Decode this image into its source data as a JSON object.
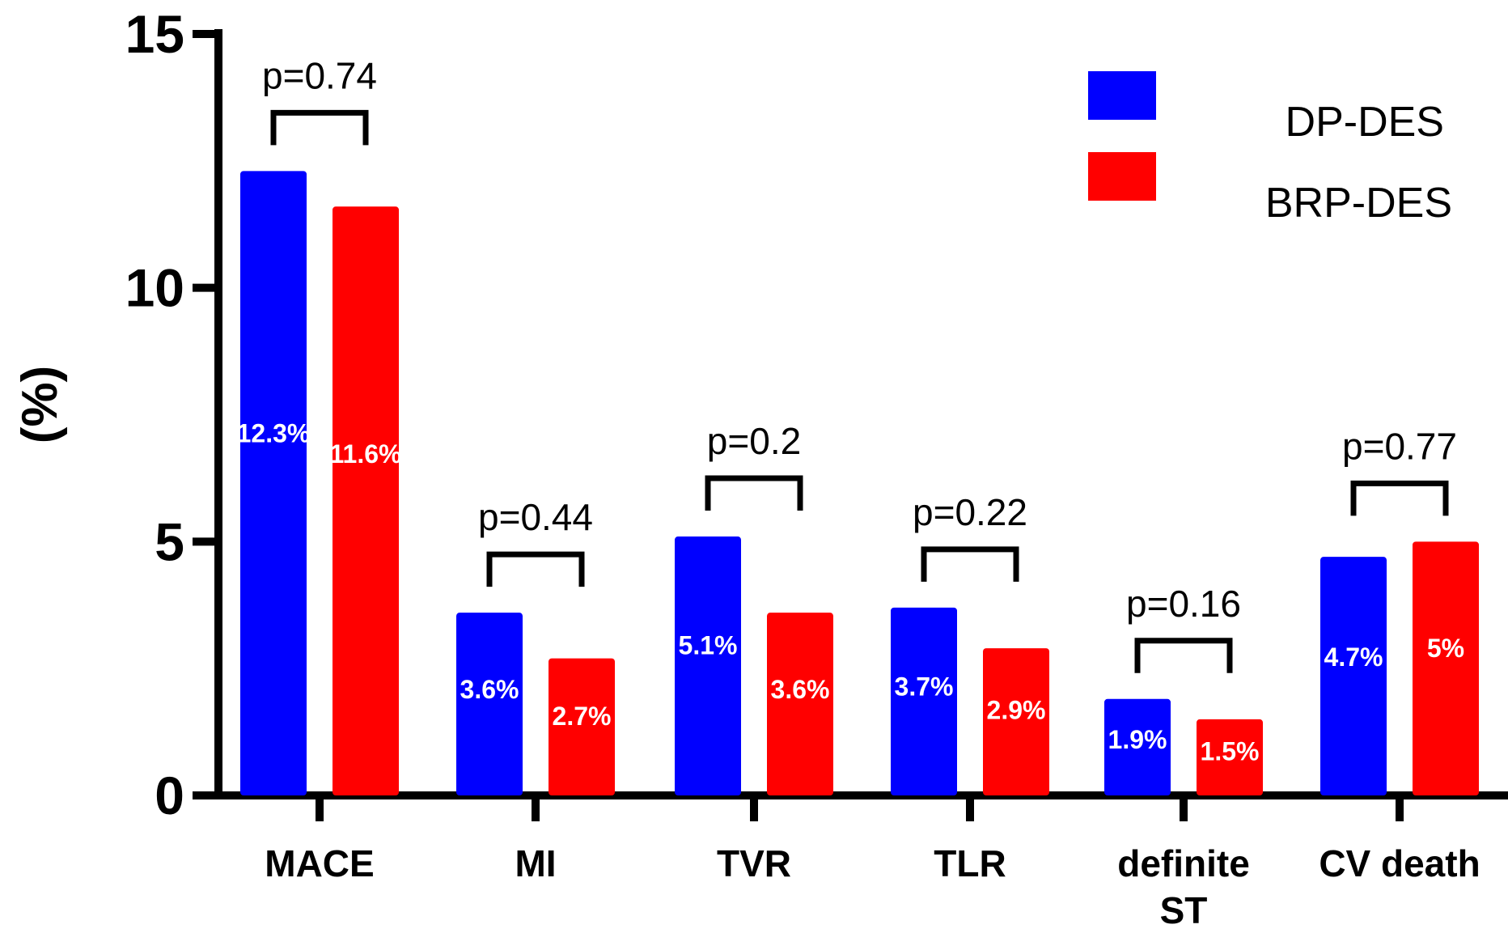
{
  "chart_data": {
    "type": "bar",
    "ylabel": "(%)",
    "ylim": [
      0,
      15
    ],
    "yticks": [
      "0",
      "5",
      "10",
      "15"
    ],
    "categories": [
      [
        "MACE"
      ],
      [
        "MI"
      ],
      [
        "TVR"
      ],
      [
        "TLR"
      ],
      [
        "definite",
        "ST"
      ],
      [
        "CV death"
      ]
    ],
    "series": [
      {
        "name": "DP-DES",
        "color": "#0000ff",
        "values": [
          12.3,
          3.6,
          5.1,
          3.7,
          1.9,
          4.7
        ],
        "labels": [
          "12.3%",
          "3.6%",
          "5.1%",
          "3.7%",
          "1.9%",
          "4.7%"
        ]
      },
      {
        "name": "BRP-DES",
        "color": "#ff0000",
        "values": [
          11.6,
          2.7,
          3.6,
          2.9,
          1.5,
          5.0
        ],
        "labels": [
          "11.6%",
          "2.7%",
          "3.6%",
          "2.9%",
          "1.5%",
          "5%"
        ]
      }
    ],
    "p_values": [
      "p=0.74",
      "p=0.44",
      "p=0.2",
      "p=0.22",
      "p=0.16",
      "p=0.77"
    ],
    "legend": {
      "placement": "top-right"
    },
    "grid": false
  }
}
